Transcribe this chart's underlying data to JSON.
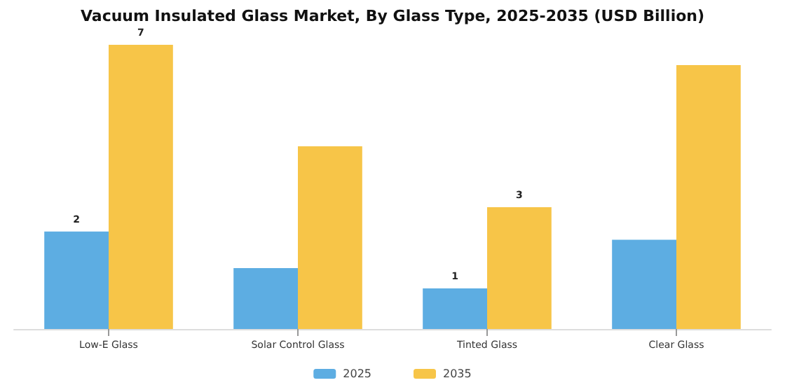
{
  "chart_data": {
    "type": "bar",
    "title": "Vacuum Insulated Glass Market, By Glass Type, 2025-2035 (USD Billion)",
    "categories": [
      "Low-E Glass",
      "Solar Control Glass",
      "Tinted Glass",
      "Clear Glass"
    ],
    "series": [
      {
        "name": "2025",
        "color": "#5dade2",
        "values": [
          2.4,
          1.5,
          1.0,
          2.2
        ],
        "value_labels": [
          "2",
          null,
          "1",
          null
        ]
      },
      {
        "name": "2035",
        "color": "#f7c548",
        "values": [
          7.0,
          4.5,
          3.0,
          6.5
        ],
        "value_labels": [
          "7",
          null,
          "3",
          null
        ]
      }
    ],
    "legend": "bottom"
  }
}
